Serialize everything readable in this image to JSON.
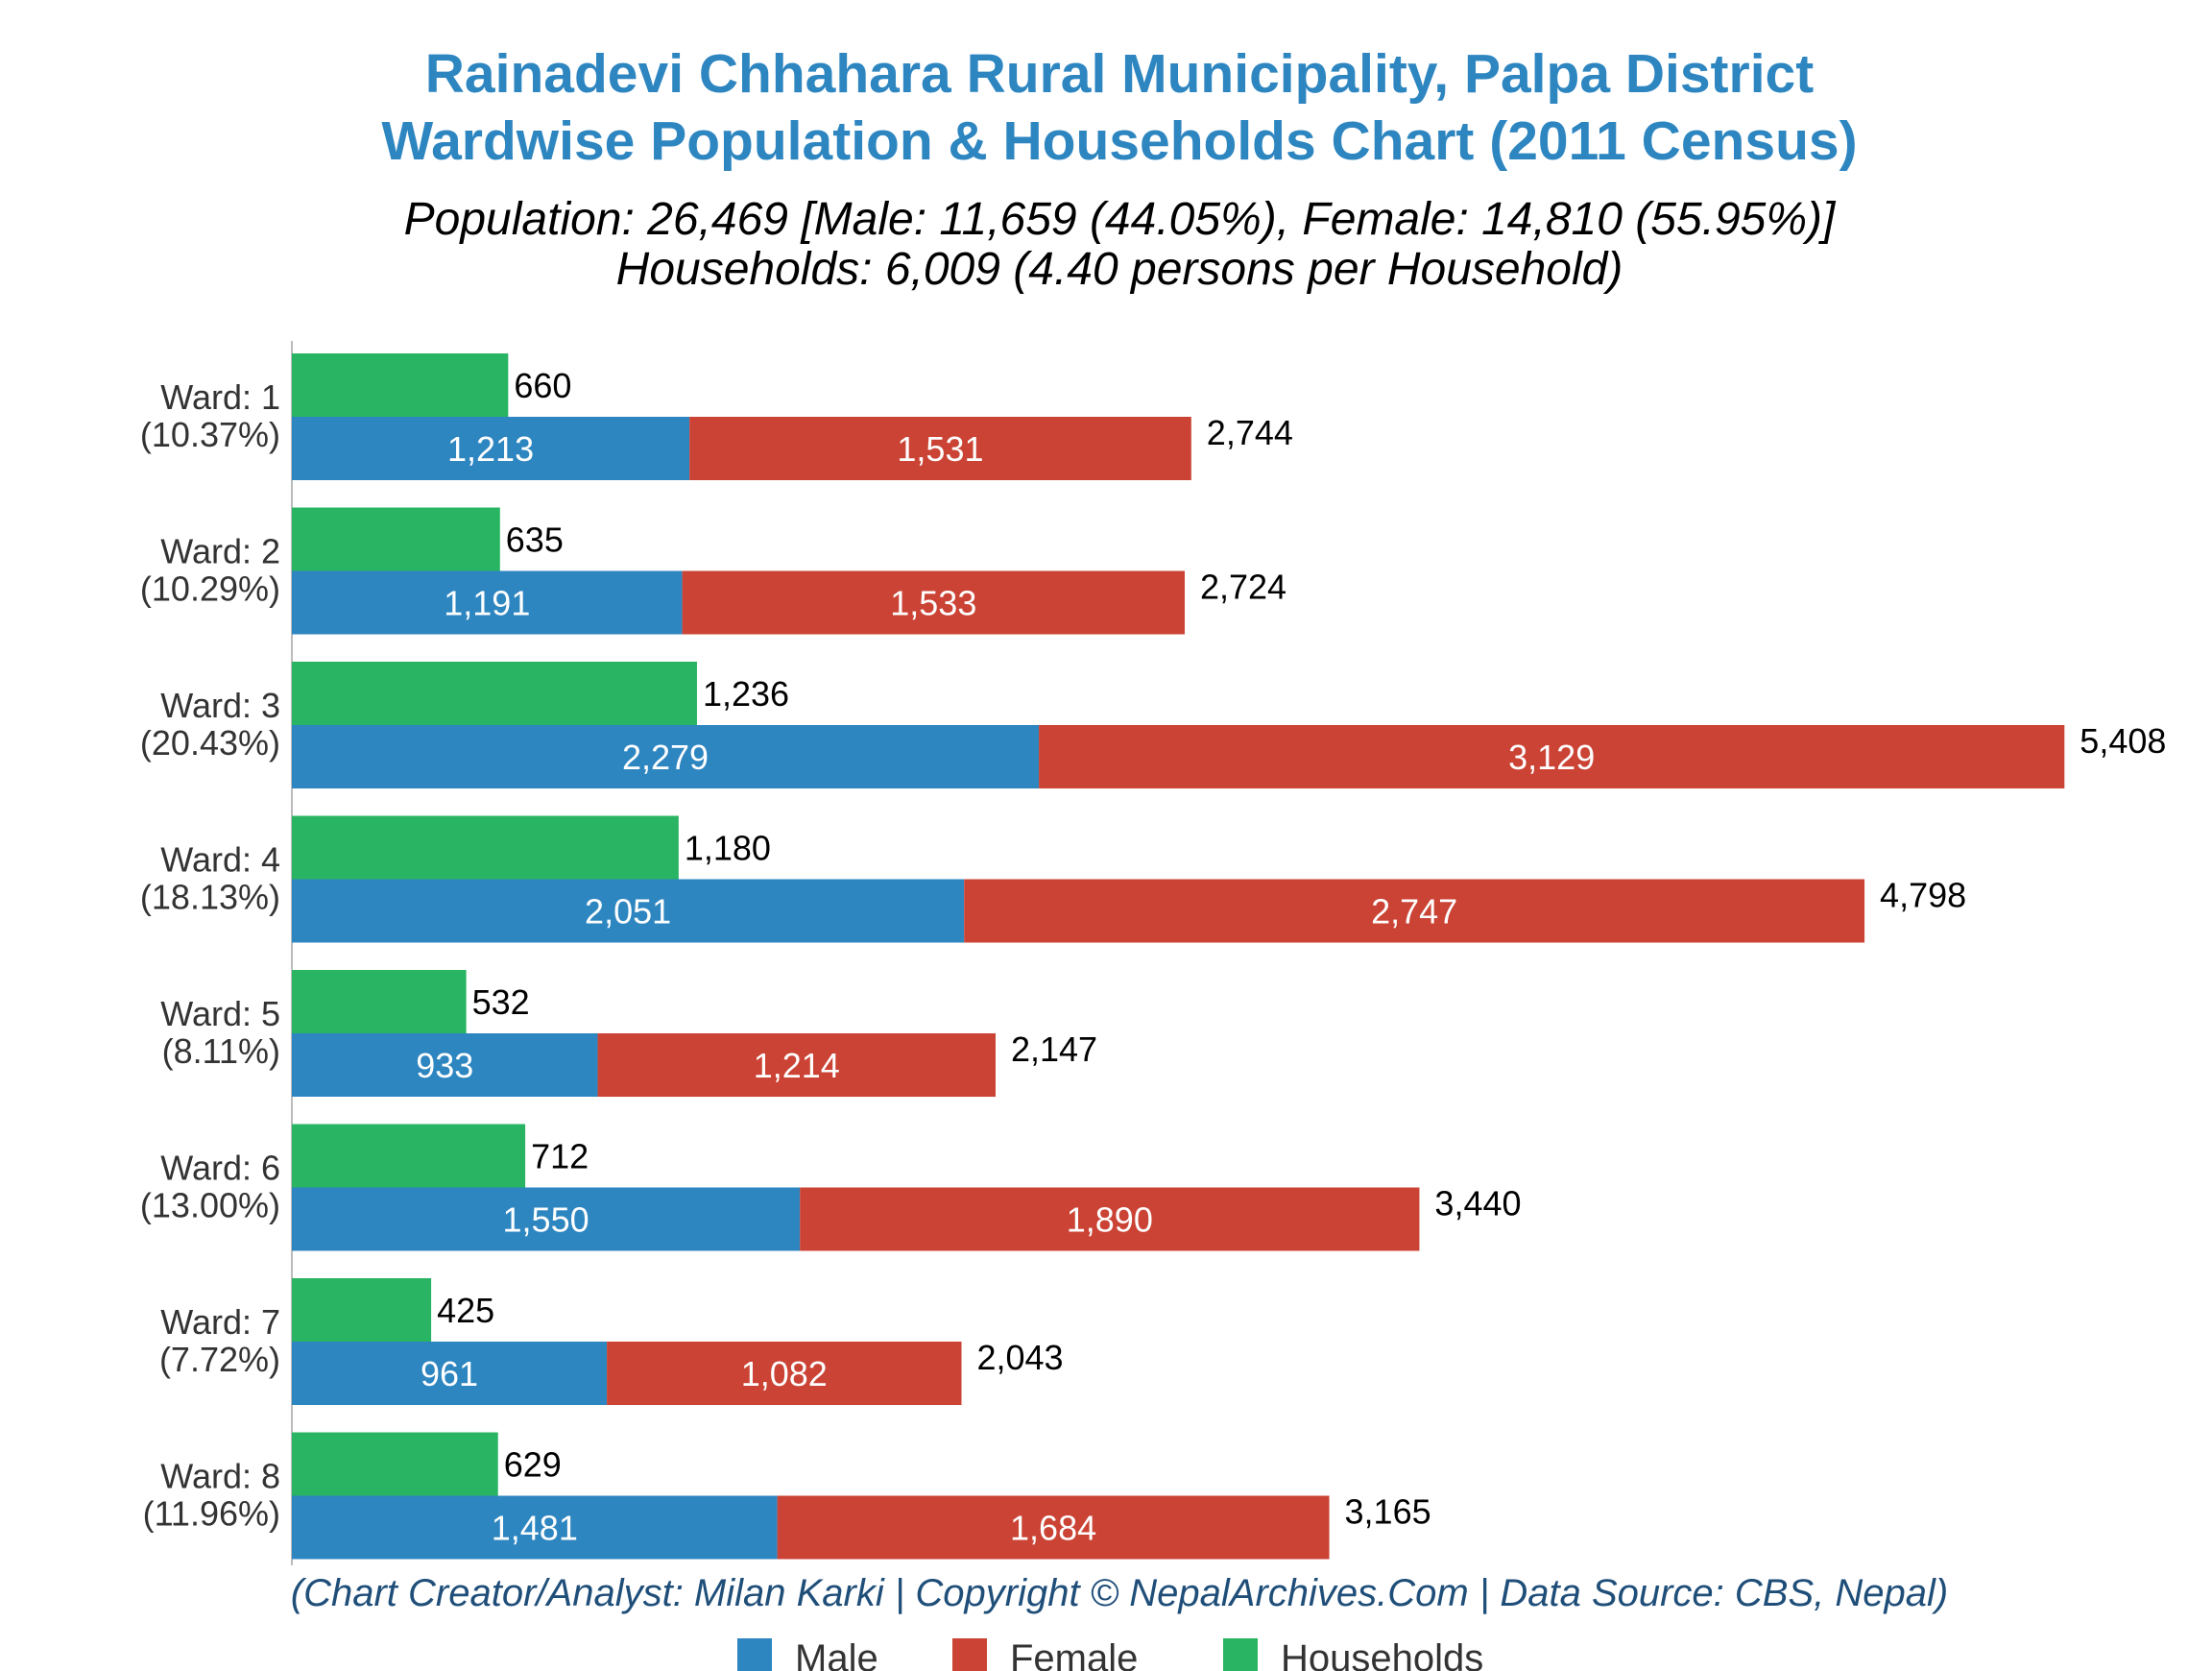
{
  "chart_data": {
    "type": "bar",
    "orientation": "horizontal",
    "stacked": true,
    "title_line1": "Rainadevi Chhahara Rural Municipality, Palpa District",
    "title_line2": "Wardwise Population & Households Chart (2011 Census)",
    "subtitle_line1": "Population: 26,469 [Male: 11,659 (44.05%), Female: 14,810 (55.95%)]",
    "subtitle_line2": "Households: 6,009 (4.40 persons per Household)",
    "credit": "(Chart Creator/Analyst: Milan Karki | Copyright © NepalArchives.Com | Data Source: CBS, Nepal)",
    "xlim": [
      0,
      5700
    ],
    "grid": false,
    "legend_position": "bottom",
    "colors": {
      "male": "#2e86c1",
      "female": "#cb4335",
      "households": "#28b463"
    },
    "categories": [
      {
        "label": "Ward: 1",
        "pct": "(10.37%)",
        "male": 1213,
        "male_label": "1,213",
        "female": 1531,
        "female_label": "1,531",
        "total_label": "2,744",
        "households": 660,
        "households_label": "660"
      },
      {
        "label": "Ward: 2",
        "pct": "(10.29%)",
        "male": 1191,
        "male_label": "1,191",
        "female": 1533,
        "female_label": "1,533",
        "total_label": "2,724",
        "households": 635,
        "households_label": "635"
      },
      {
        "label": "Ward: 3",
        "pct": "(20.43%)",
        "male": 2279,
        "male_label": "2,279",
        "female": 3129,
        "female_label": "3,129",
        "total_label": "5,408",
        "households": 1236,
        "households_label": "1,236"
      },
      {
        "label": "Ward: 4",
        "pct": "(18.13%)",
        "male": 2051,
        "male_label": "2,051",
        "female": 2747,
        "female_label": "2,747",
        "total_label": "4,798",
        "households": 1180,
        "households_label": "1,180"
      },
      {
        "label": "Ward: 5",
        "pct": "(8.11%)",
        "male": 933,
        "male_label": "933",
        "female": 1214,
        "female_label": "1,214",
        "total_label": "2,147",
        "households": 532,
        "households_label": "532"
      },
      {
        "label": "Ward: 6",
        "pct": "(13.00%)",
        "male": 1550,
        "male_label": "1,550",
        "female": 1890,
        "female_label": "1,890",
        "total_label": "3,440",
        "households": 712,
        "households_label": "712"
      },
      {
        "label": "Ward: 7",
        "pct": "(7.72%)",
        "male": 961,
        "male_label": "961",
        "female": 1082,
        "female_label": "1,082",
        "total_label": "2,043",
        "households": 425,
        "households_label": "425"
      },
      {
        "label": "Ward: 8",
        "pct": "(11.96%)",
        "male": 1481,
        "male_label": "1,481",
        "female": 1684,
        "female_label": "1,684",
        "total_label": "3,165",
        "households": 629,
        "households_label": "629"
      }
    ],
    "legend": [
      {
        "key": "male",
        "label": "Male"
      },
      {
        "key": "female",
        "label": "Female"
      },
      {
        "key": "households",
        "label": "Households"
      }
    ]
  }
}
